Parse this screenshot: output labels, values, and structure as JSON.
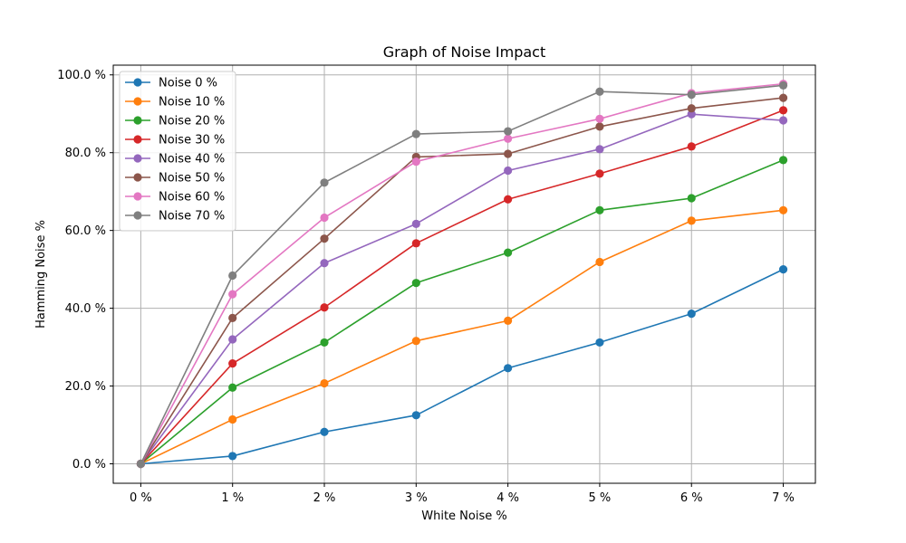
{
  "chart_data": {
    "type": "line",
    "title": "Graph of Noise Impact",
    "xlabel": "White Noise %",
    "ylabel": "Hamming Noise %",
    "categories": [
      "0 %",
      "1 %",
      "2 %",
      "3 %",
      "4 %",
      "5 %",
      "6 %",
      "7 %"
    ],
    "x": [
      0,
      1,
      2,
      3,
      4,
      5,
      6,
      7
    ],
    "xlim": [
      -0.3,
      7.35
    ],
    "ylim": [
      -5,
      102.5
    ],
    "yticks": [
      0,
      20,
      40,
      60,
      80,
      100
    ],
    "ytick_labels": [
      "0.0 %",
      "20.0 %",
      "40.0 %",
      "60.0 %",
      "80.0 %",
      "100.0 %"
    ],
    "grid": true,
    "legend_position": "top-left",
    "series": [
      {
        "name": "Noise 0 %",
        "color": "#1f77b4",
        "values": [
          0,
          2.0,
          8.2,
          12.5,
          24.6,
          31.2,
          38.6,
          50.0
        ]
      },
      {
        "name": "Noise 10 %",
        "color": "#ff7f0e",
        "values": [
          0,
          11.4,
          20.7,
          31.6,
          36.8,
          51.9,
          62.5,
          65.2
        ]
      },
      {
        "name": "Noise 20 %",
        "color": "#2ca02c",
        "values": [
          0,
          19.6,
          31.2,
          46.5,
          54.3,
          65.2,
          68.3,
          78.1
        ]
      },
      {
        "name": "Noise 30 %",
        "color": "#d62728",
        "values": [
          0,
          25.8,
          40.2,
          56.7,
          68.0,
          74.6,
          81.6,
          90.9
        ]
      },
      {
        "name": "Noise 40 %",
        "color": "#9467bd",
        "values": [
          0,
          32.0,
          51.6,
          61.7,
          75.4,
          80.9,
          89.9,
          88.3
        ]
      },
      {
        "name": "Noise 50 %",
        "color": "#8c564b",
        "values": [
          0,
          37.5,
          57.9,
          78.9,
          79.7,
          86.7,
          91.4,
          94.1
        ]
      },
      {
        "name": "Noise 60 %",
        "color": "#e377c2",
        "values": [
          0,
          43.6,
          63.3,
          77.7,
          83.6,
          88.7,
          95.3,
          97.7
        ]
      },
      {
        "name": "Noise 70 %",
        "color": "#7f7f7f",
        "values": [
          0,
          48.4,
          72.3,
          84.8,
          85.5,
          95.7,
          94.9,
          97.3
        ]
      }
    ]
  }
}
